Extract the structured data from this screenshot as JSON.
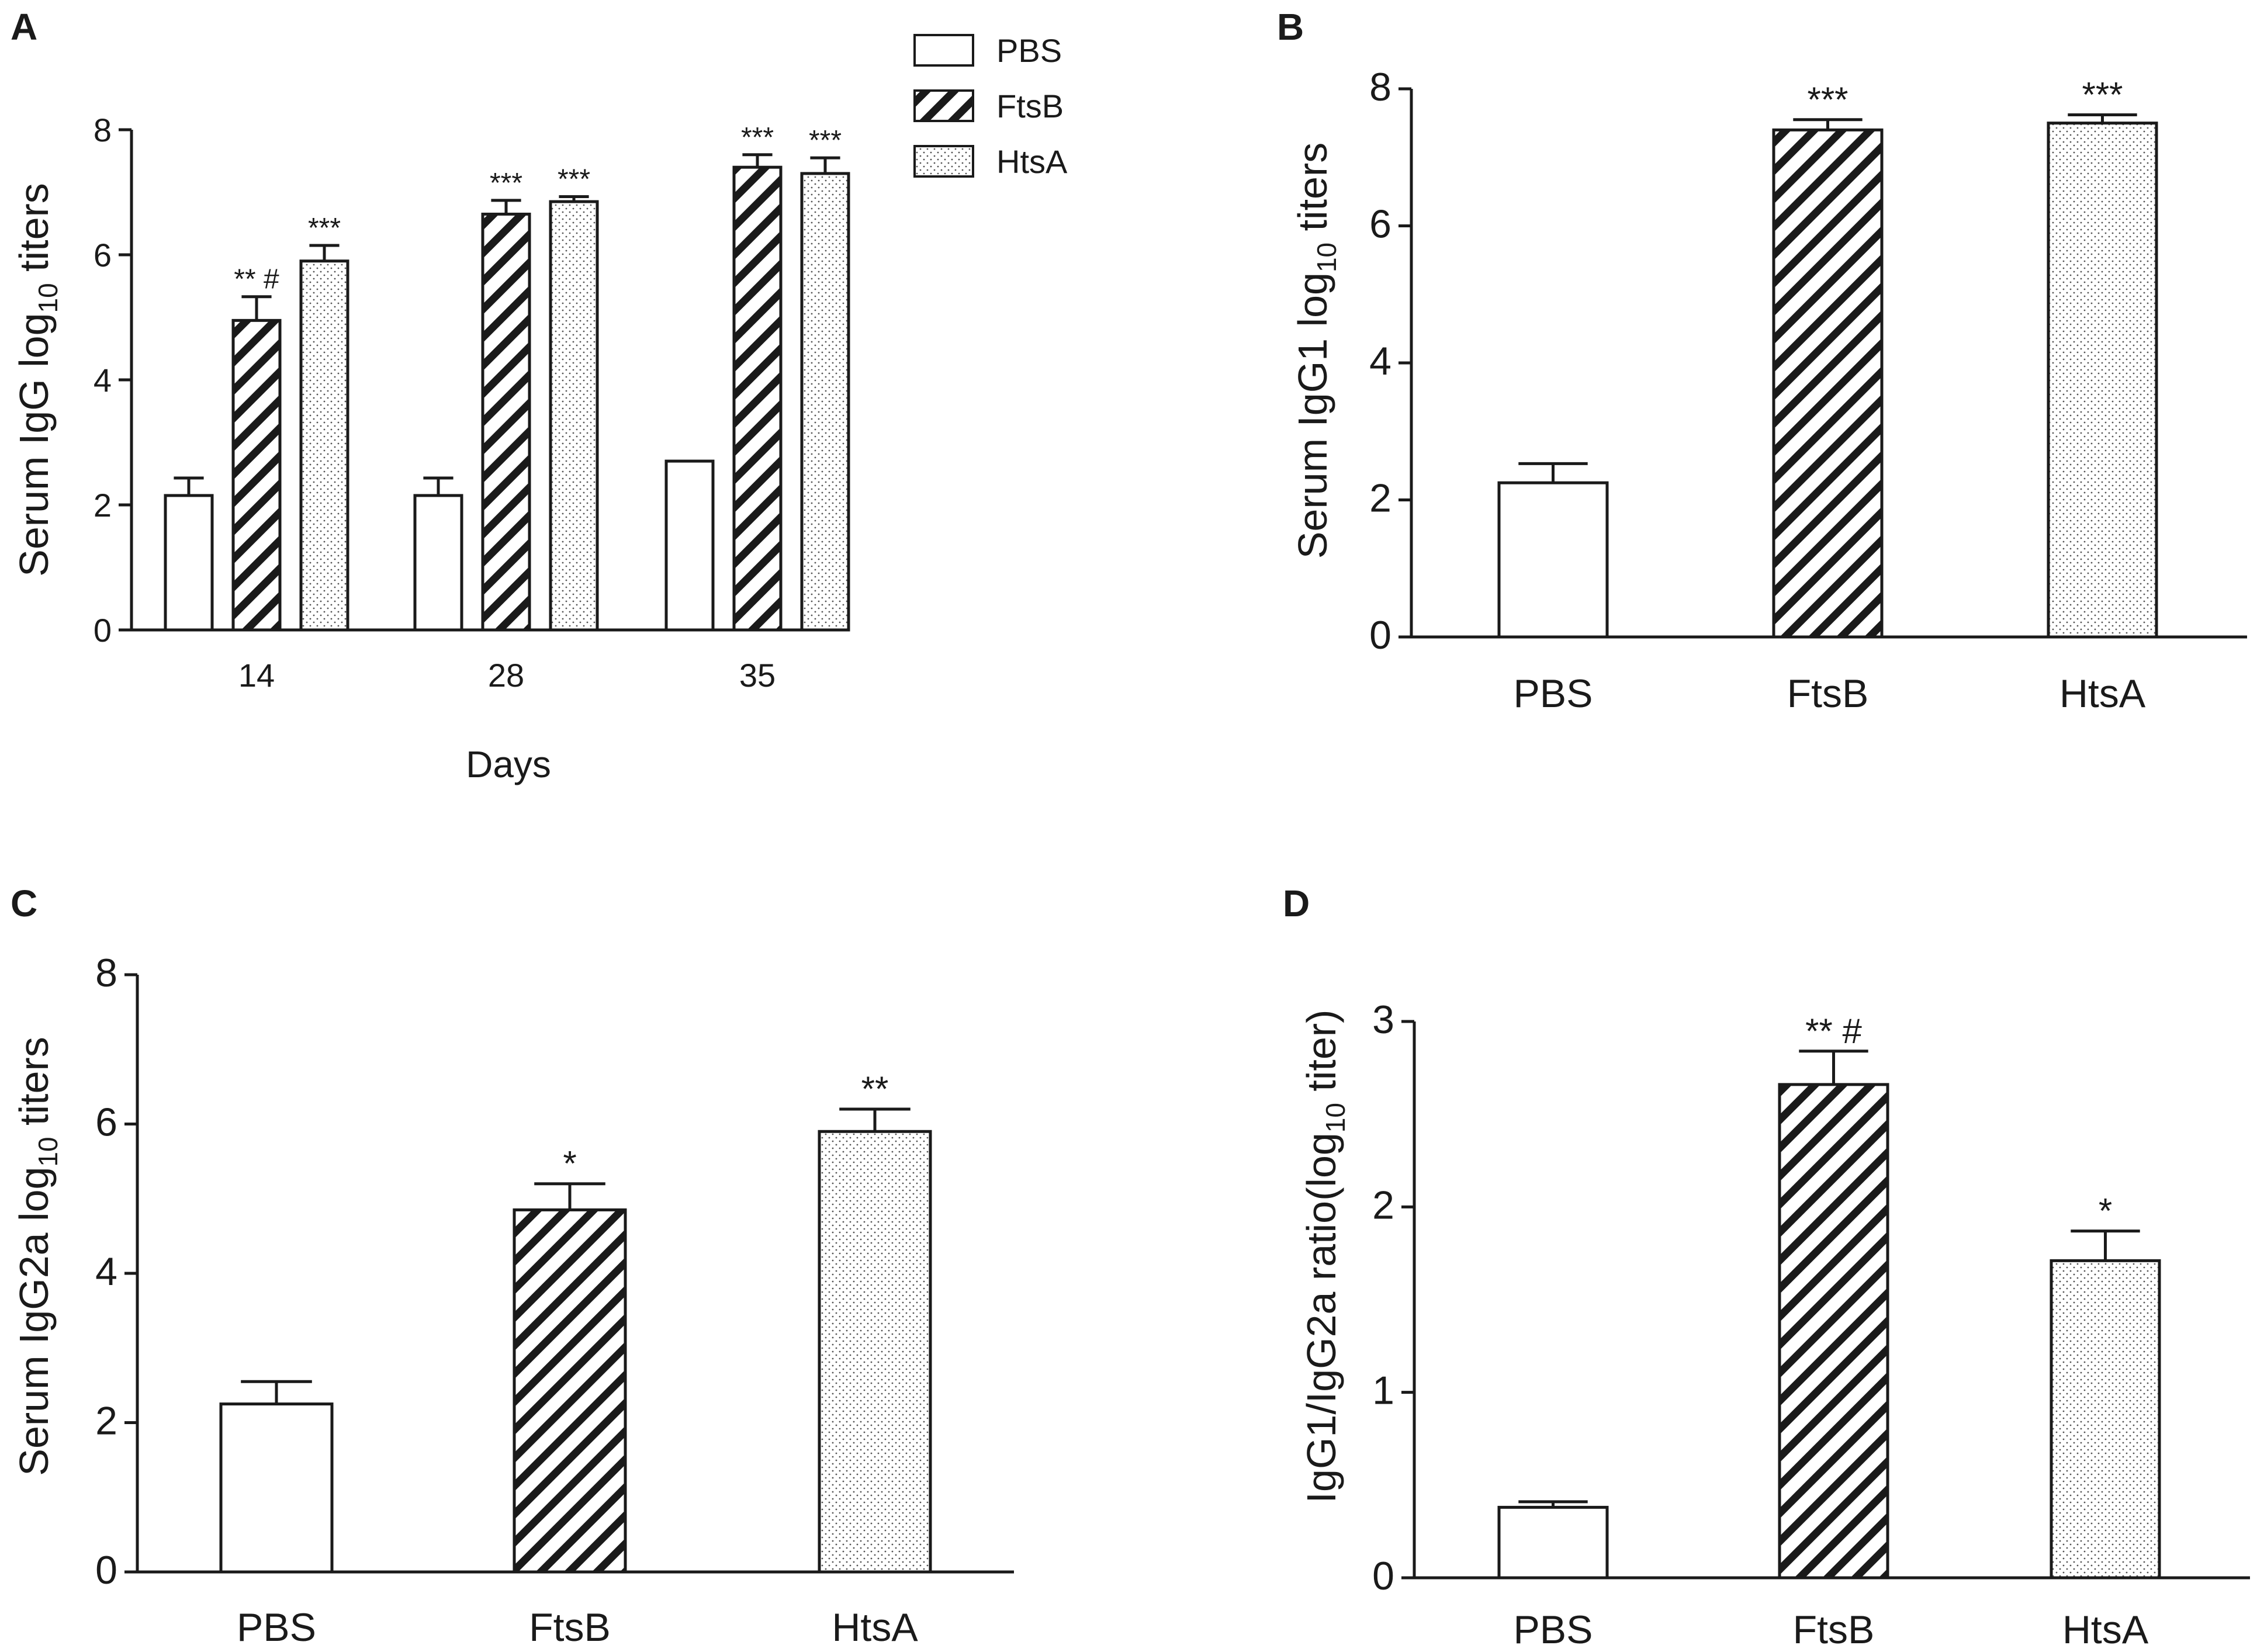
{
  "chart_data": [
    {
      "panel": "A",
      "type": "bar",
      "ylabel_main": "Serum IgG log",
      "ylabel_sub": "10",
      "ylabel_tail": " titers",
      "xlabel": "Days",
      "categories": [
        "14",
        "28",
        "35"
      ],
      "ylim": [
        0,
        8
      ],
      "yticks": [
        "0",
        "2",
        "4",
        "6",
        "8"
      ],
      "legend": [
        "PBS",
        "FtsB",
        "HtsA"
      ],
      "series": [
        {
          "name": "PBS",
          "values": [
            2.15,
            2.15,
            2.7
          ],
          "errors": [
            0.28,
            0.28,
            0.0
          ],
          "annotations": [
            "",
            "",
            ""
          ]
        },
        {
          "name": "FtsB",
          "values": [
            4.95,
            6.65,
            7.4
          ],
          "errors": [
            0.38,
            0.22,
            0.2
          ],
          "annotations": [
            "** #",
            "***",
            "***"
          ]
        },
        {
          "name": "HtsA",
          "values": [
            5.9,
            6.85,
            7.3
          ],
          "errors": [
            0.25,
            0.08,
            0.25
          ],
          "annotations": [
            "***",
            "***",
            "***"
          ]
        }
      ]
    },
    {
      "panel": "B",
      "type": "bar",
      "ylabel_main": "Serum IgG1 log",
      "ylabel_sub": "10",
      "ylabel_tail": " titers",
      "categories": [
        "PBS",
        "FtsB",
        "HtsA"
      ],
      "ylim": [
        0,
        8
      ],
      "yticks": [
        "0",
        "2",
        "4",
        "6",
        "8"
      ],
      "values": [
        2.25,
        7.4,
        7.5
      ],
      "errors": [
        0.28,
        0.15,
        0.12
      ],
      "annotations": [
        "",
        "***",
        "***"
      ]
    },
    {
      "panel": "C",
      "type": "bar",
      "ylabel_main": "Serum IgG2a log",
      "ylabel_sub": "10",
      "ylabel_tail": " titers",
      "categories": [
        "PBS",
        "FtsB",
        "HtsA"
      ],
      "ylim": [
        0,
        8
      ],
      "yticks": [
        "0",
        "2",
        "4",
        "6",
        "8"
      ],
      "values": [
        2.25,
        4.85,
        5.9
      ],
      "errors": [
        0.3,
        0.35,
        0.3
      ],
      "annotations": [
        "",
        "*",
        "**"
      ]
    },
    {
      "panel": "D",
      "type": "bar",
      "ylabel_main": "IgG1/IgG2a ratio(log",
      "ylabel_sub": "10",
      "ylabel_tail": " titer)",
      "categories": [
        "PBS",
        "FtsB",
        "HtsA"
      ],
      "ylim": [
        0,
        3
      ],
      "yticks": [
        "0",
        "1",
        "2",
        "3"
      ],
      "values": [
        0.38,
        2.66,
        1.71
      ],
      "errors": [
        0.03,
        0.18,
        0.16
      ],
      "annotations": [
        "",
        "** #",
        "*"
      ]
    }
  ]
}
